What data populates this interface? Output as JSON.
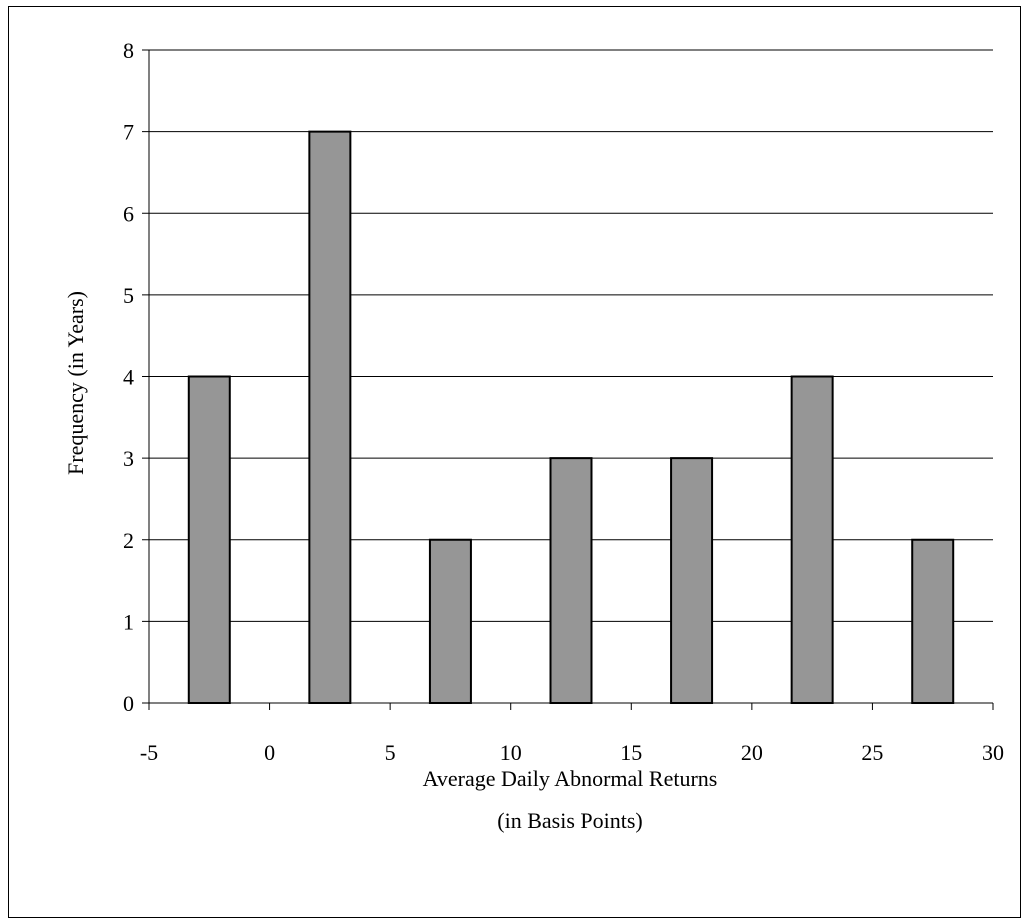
{
  "chart_data": {
    "type": "bar",
    "title": "",
    "xlabel_line1": "Average Daily Abnormal Returns",
    "xlabel_line2": "(in Basis Points)",
    "ylabel": "Frequency (in Years)",
    "x": [
      -2.5,
      2.5,
      7.5,
      12.5,
      17.5,
      22.5,
      27.5
    ],
    "values": [
      4,
      7,
      2,
      3,
      3,
      4,
      2
    ],
    "bar_width": 1.7,
    "xlim": [
      -5,
      30
    ],
    "ylim": [
      0,
      8
    ],
    "xticks": [
      -5,
      0,
      5,
      10,
      15,
      20,
      25,
      30
    ],
    "yticks": [
      0,
      1,
      2,
      3,
      4,
      5,
      6,
      7,
      8
    ],
    "grid": "horizontal",
    "colors": {
      "bar": "#969696",
      "edge": "#000000"
    }
  }
}
